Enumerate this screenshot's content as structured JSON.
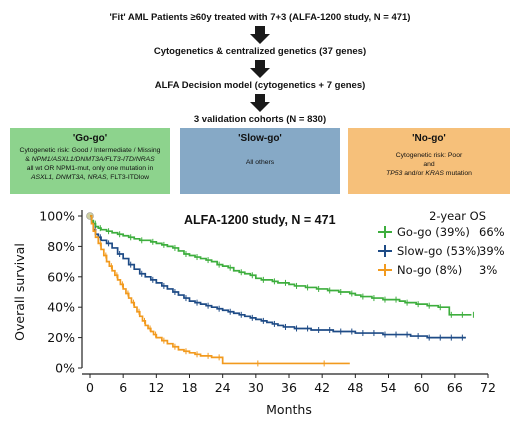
{
  "flow": {
    "steps": [
      "'Fit' AML Patients ≥60y treated with 7+3 (ALFA-1200 study, N = 471)",
      "Cytogenetics & centralized genetics (37 genes)",
      "ALFA Decision model (cytogenetics + 7 genes)",
      "3 validation cohorts (N = 830)"
    ]
  },
  "groups": {
    "go": {
      "title": "'Go-go'",
      "lines": [
        "Cytogenetic risk: Good / Intermediate / Missing",
        "& ",
        "NPM1/ASXL1/DNMT3A/FLT3-ITD/NRAS",
        "all wt OR NPM1-mut, only one mutation in",
        "ASXL1, DNMT3A, NRAS,",
        " FLT3-ITDlow"
      ],
      "color": "#8dd38d"
    },
    "slow": {
      "title": "'Slow-go'",
      "lines": [
        "All others"
      ],
      "color": "#86a9c6"
    },
    "no": {
      "title": "'No-go'",
      "lines": [
        "Cytogenetic risk: Poor",
        "and",
        "TP53",
        " and/or ",
        "KRAS",
        " mutation"
      ],
      "color": "#f6c07a"
    }
  },
  "chart_data": {
    "type": "line",
    "title": "ALFA-1200 study, N = 471",
    "xlabel": "Months",
    "ylabel": "Overall survival",
    "xlim": [
      0,
      72
    ],
    "ylim": [
      0,
      100
    ],
    "xticks": [
      0,
      6,
      12,
      18,
      24,
      30,
      36,
      42,
      48,
      54,
      60,
      66,
      72
    ],
    "yticks": [
      "0%",
      "20%",
      "40%",
      "60%",
      "80%",
      "100%"
    ],
    "legend_header": "2-year OS",
    "legend_placement": "top-right",
    "series": [
      {
        "name": "Go-go (39%)",
        "os2y": "66%",
        "color": "#3dae3d",
        "x": [
          0,
          0.3,
          0.6,
          1,
          1.5,
          2,
          3,
          4,
          5,
          6,
          7,
          8,
          9,
          10,
          11,
          12,
          13,
          14,
          15,
          16,
          17,
          18,
          19,
          20,
          21,
          22,
          23,
          24,
          25,
          26,
          27,
          28,
          29,
          30,
          31,
          32,
          33,
          34,
          35,
          36,
          37,
          38,
          39,
          40,
          41,
          42,
          43,
          44,
          45,
          46,
          47,
          48,
          49,
          50,
          51,
          52,
          53,
          54,
          55,
          56,
          57,
          58,
          59,
          60,
          61,
          62,
          63,
          64,
          65,
          66,
          67,
          68,
          69
        ],
        "y": [
          100,
          97,
          95,
          93,
          92,
          91,
          90,
          89,
          88,
          87,
          86,
          85,
          84,
          84,
          83,
          82,
          81,
          80,
          79,
          77,
          75,
          74,
          73,
          72,
          71,
          70,
          68,
          67,
          66,
          64,
          63,
          62,
          61,
          59,
          58,
          58,
          57,
          56,
          56,
          55,
          54,
          54,
          53,
          53,
          52,
          52,
          51,
          51,
          50,
          50,
          49,
          48,
          47,
          47,
          46,
          46,
          45,
          45,
          45,
          44,
          43,
          43,
          42,
          42,
          41,
          41,
          40,
          40,
          35,
          35,
          35,
          35,
          35
        ]
      },
      {
        "name": "Slow-go (53%)",
        "os2y": "39%",
        "color": "#1e4b86",
        "x": [
          0,
          0.3,
          0.6,
          1,
          1.5,
          2,
          3,
          4,
          5,
          6,
          7,
          8,
          9,
          10,
          11,
          12,
          13,
          14,
          15,
          16,
          17,
          18,
          19,
          20,
          21,
          22,
          23,
          24,
          25,
          26,
          27,
          28,
          29,
          30,
          31,
          32,
          33,
          34,
          35,
          36,
          37,
          38,
          39,
          40,
          41,
          42,
          43,
          44,
          45,
          46,
          47,
          48,
          49,
          50,
          51,
          52,
          53,
          54,
          55,
          56,
          57,
          58,
          59,
          60,
          61,
          62,
          63,
          64,
          65,
          66,
          67,
          68
        ],
        "y": [
          100,
          95,
          91,
          88,
          86,
          84,
          82,
          79,
          75,
          72,
          68,
          65,
          62,
          60,
          58,
          56,
          54,
          52,
          50,
          48,
          46,
          44,
          43,
          42,
          41,
          40,
          39,
          38,
          37,
          36,
          35,
          34,
          33,
          32,
          31,
          30,
          29,
          28,
          27,
          27,
          26,
          26,
          26,
          25,
          25,
          25,
          25,
          24,
          24,
          24,
          24,
          23,
          23,
          23,
          23,
          23,
          22,
          22,
          22,
          22,
          22,
          21,
          21,
          21,
          20,
          20,
          20,
          20,
          20,
          20,
          20,
          20
        ]
      },
      {
        "name": "No-go (8%)",
        "os2y": "3%",
        "color": "#f29a1e",
        "x": [
          0,
          0.3,
          0.6,
          1,
          1.5,
          2,
          2.5,
          3,
          3.5,
          4,
          4.5,
          5,
          5.5,
          6,
          6.5,
          7,
          7.5,
          8,
          8.5,
          9,
          9.5,
          10,
          10.5,
          11,
          11.5,
          12,
          13,
          14,
          15,
          16,
          17,
          18,
          19,
          20,
          21,
          22,
          23,
          24,
          30,
          36,
          42,
          47
        ],
        "y": [
          100,
          95,
          90,
          86,
          82,
          78,
          74,
          70,
          67,
          64,
          61,
          58,
          55,
          52,
          49,
          46,
          43,
          40,
          37,
          34,
          31,
          28,
          26,
          24,
          22,
          20,
          18,
          16,
          14,
          12,
          11,
          10,
          9,
          8,
          8,
          7,
          7,
          3,
          3,
          3,
          3,
          3
        ]
      }
    ]
  }
}
